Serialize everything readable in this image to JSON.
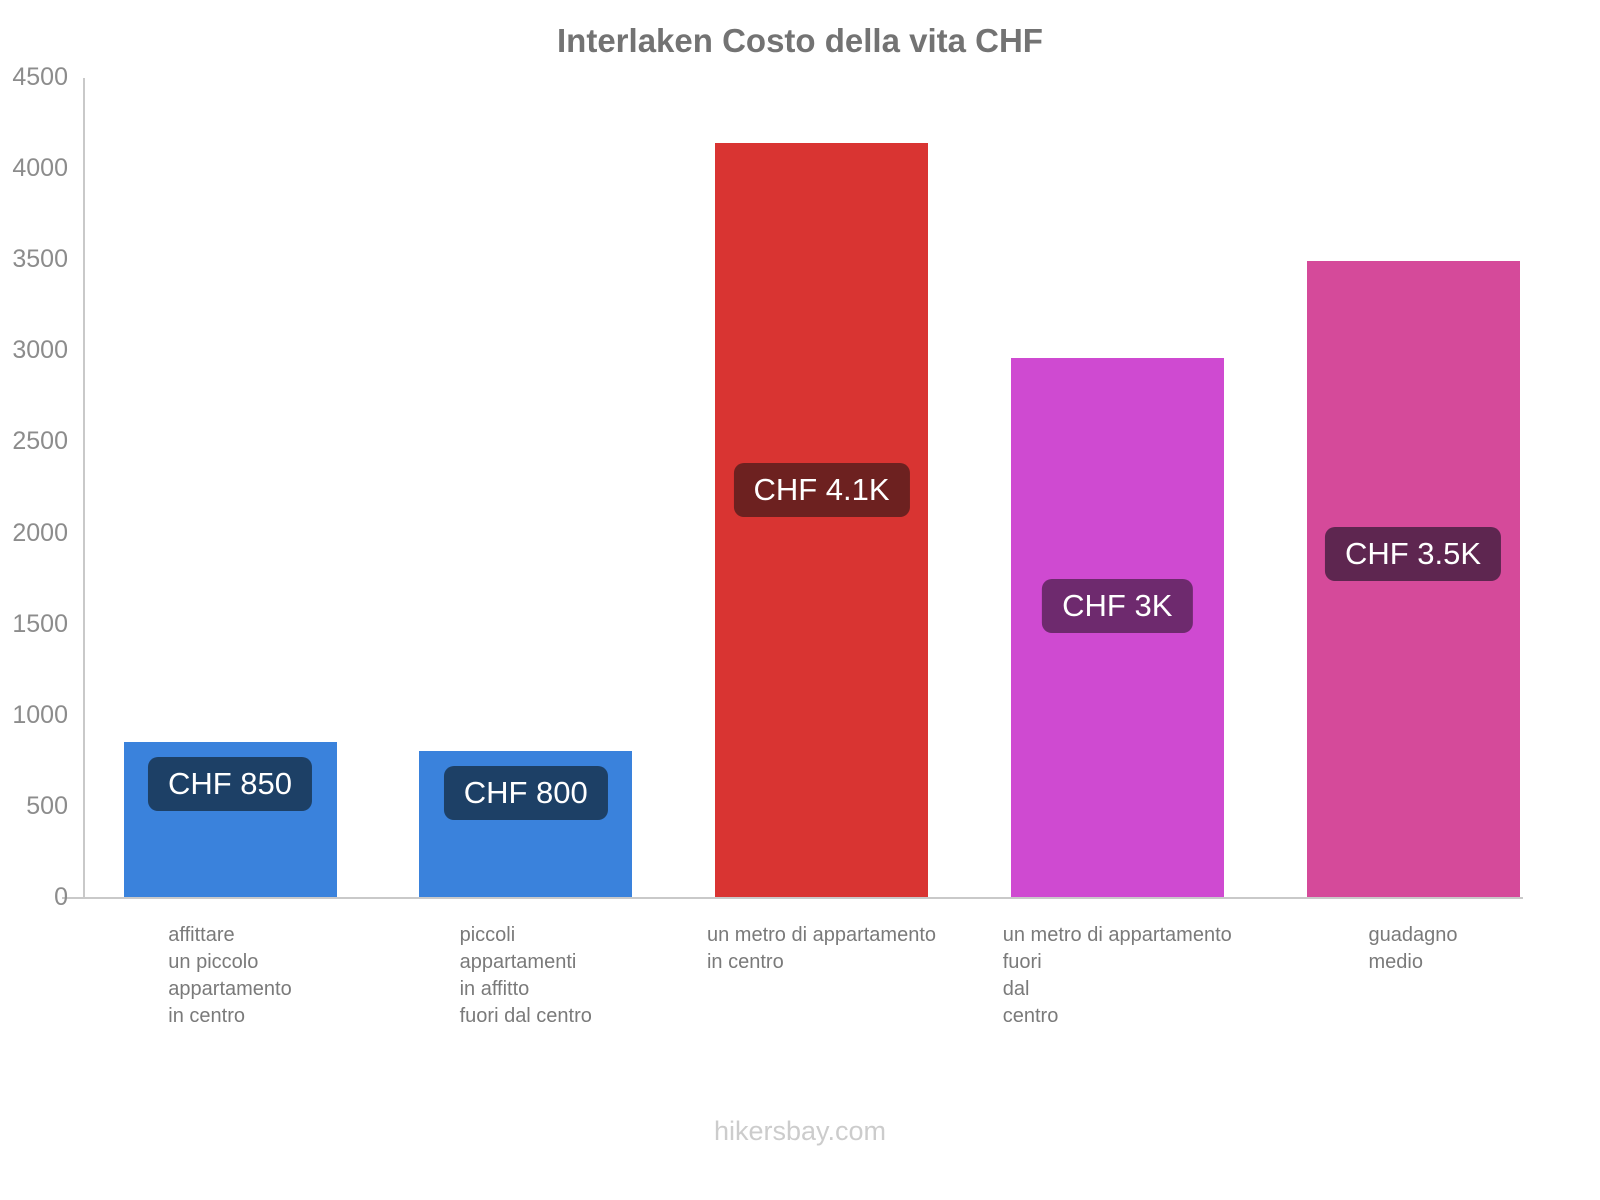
{
  "title": "Interlaken Costo della vita CHF",
  "footer": "hikersbay.com",
  "chart_data": {
    "type": "bar",
    "title": "Interlaken Costo della vita CHF",
    "xlabel": "",
    "ylabel": "",
    "ylim": [
      0,
      4500
    ],
    "yticks": [
      0,
      500,
      1000,
      1500,
      2000,
      2500,
      3000,
      3500,
      4000,
      4500
    ],
    "grid": false,
    "legend": false,
    "categories": [
      [
        "affittare",
        "un piccolo",
        "appartamento",
        "in centro"
      ],
      [
        "piccoli",
        "appartamenti",
        "in affitto",
        "fuori dal centro"
      ],
      [
        "un metro di appartamento",
        "in centro"
      ],
      [
        "un metro di appartamento",
        "fuori",
        "dal",
        "centro"
      ],
      [
        "guadagno",
        "medio"
      ]
    ],
    "values": [
      850,
      800,
      4140,
      2960,
      3490
    ],
    "value_labels": [
      "CHF 850",
      "CHF 800",
      "CHF 4.1K",
      "CHF 3K",
      "CHF 3.5K"
    ],
    "bar_colors": [
      "#3a82dc",
      "#3a82dc",
      "#d93432",
      "#cf4ad1",
      "#d54a9a"
    ],
    "value_label_bg_colors": [
      "#1d4066",
      "#1d4066",
      "#6d2120",
      "#6e2a6e",
      "#5e2650"
    ],
    "axis_color": "#c9c9c9",
    "tick_label_color": "#8c8c8c",
    "title_color": "#737373",
    "footer_color": "#cccccc"
  }
}
